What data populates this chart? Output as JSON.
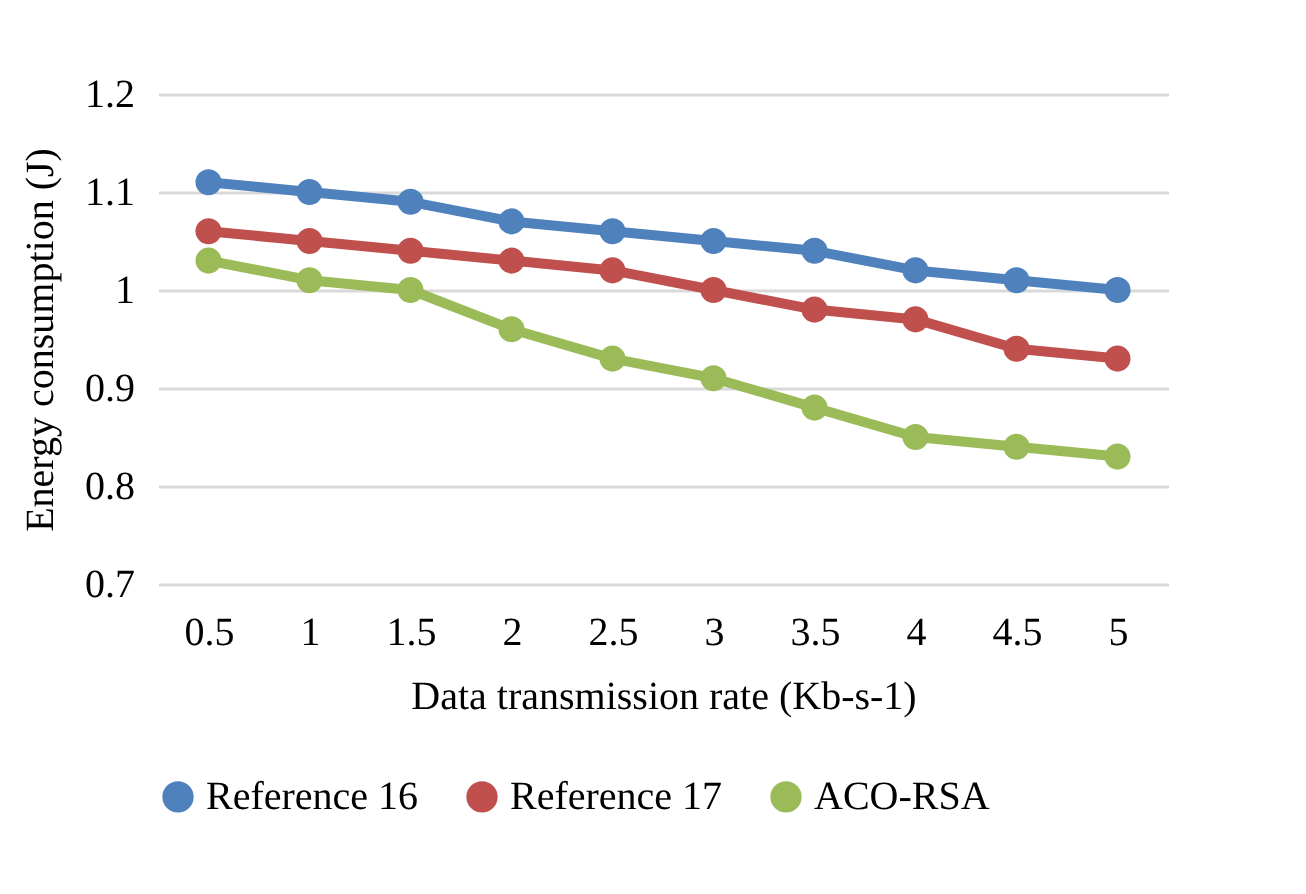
{
  "chart_data": {
    "type": "line",
    "xlabel": "Data transmission rate (Kb-s-1)",
    "ylabel": "Energy consumption (J)",
    "categories": [
      "0.5",
      "1",
      "1.5",
      "2",
      "2.5",
      "3",
      "3.5",
      "4",
      "4.5",
      "5"
    ],
    "series": [
      {
        "name": "Reference 16",
        "color": "#4f81bd",
        "values": [
          1.11,
          1.1,
          1.09,
          1.07,
          1.06,
          1.05,
          1.04,
          1.02,
          1.01,
          1.0
        ]
      },
      {
        "name": "Reference 17",
        "color": "#c0504d",
        "values": [
          1.06,
          1.05,
          1.04,
          1.03,
          1.02,
          1.0,
          0.98,
          0.97,
          0.94,
          0.93
        ]
      },
      {
        "name": "ACO-RSA",
        "color": "#9bbb59",
        "values": [
          1.03,
          1.01,
          1.0,
          0.96,
          0.93,
          0.91,
          0.88,
          0.85,
          0.84,
          0.83
        ]
      }
    ],
    "ylim": [
      0.7,
      1.2
    ],
    "yticks": [
      0.7,
      0.8,
      0.9,
      1,
      1.1,
      1.2
    ],
    "grid": "y",
    "legend": "bottom",
    "marker": "circle",
    "line_style": "solid"
  }
}
